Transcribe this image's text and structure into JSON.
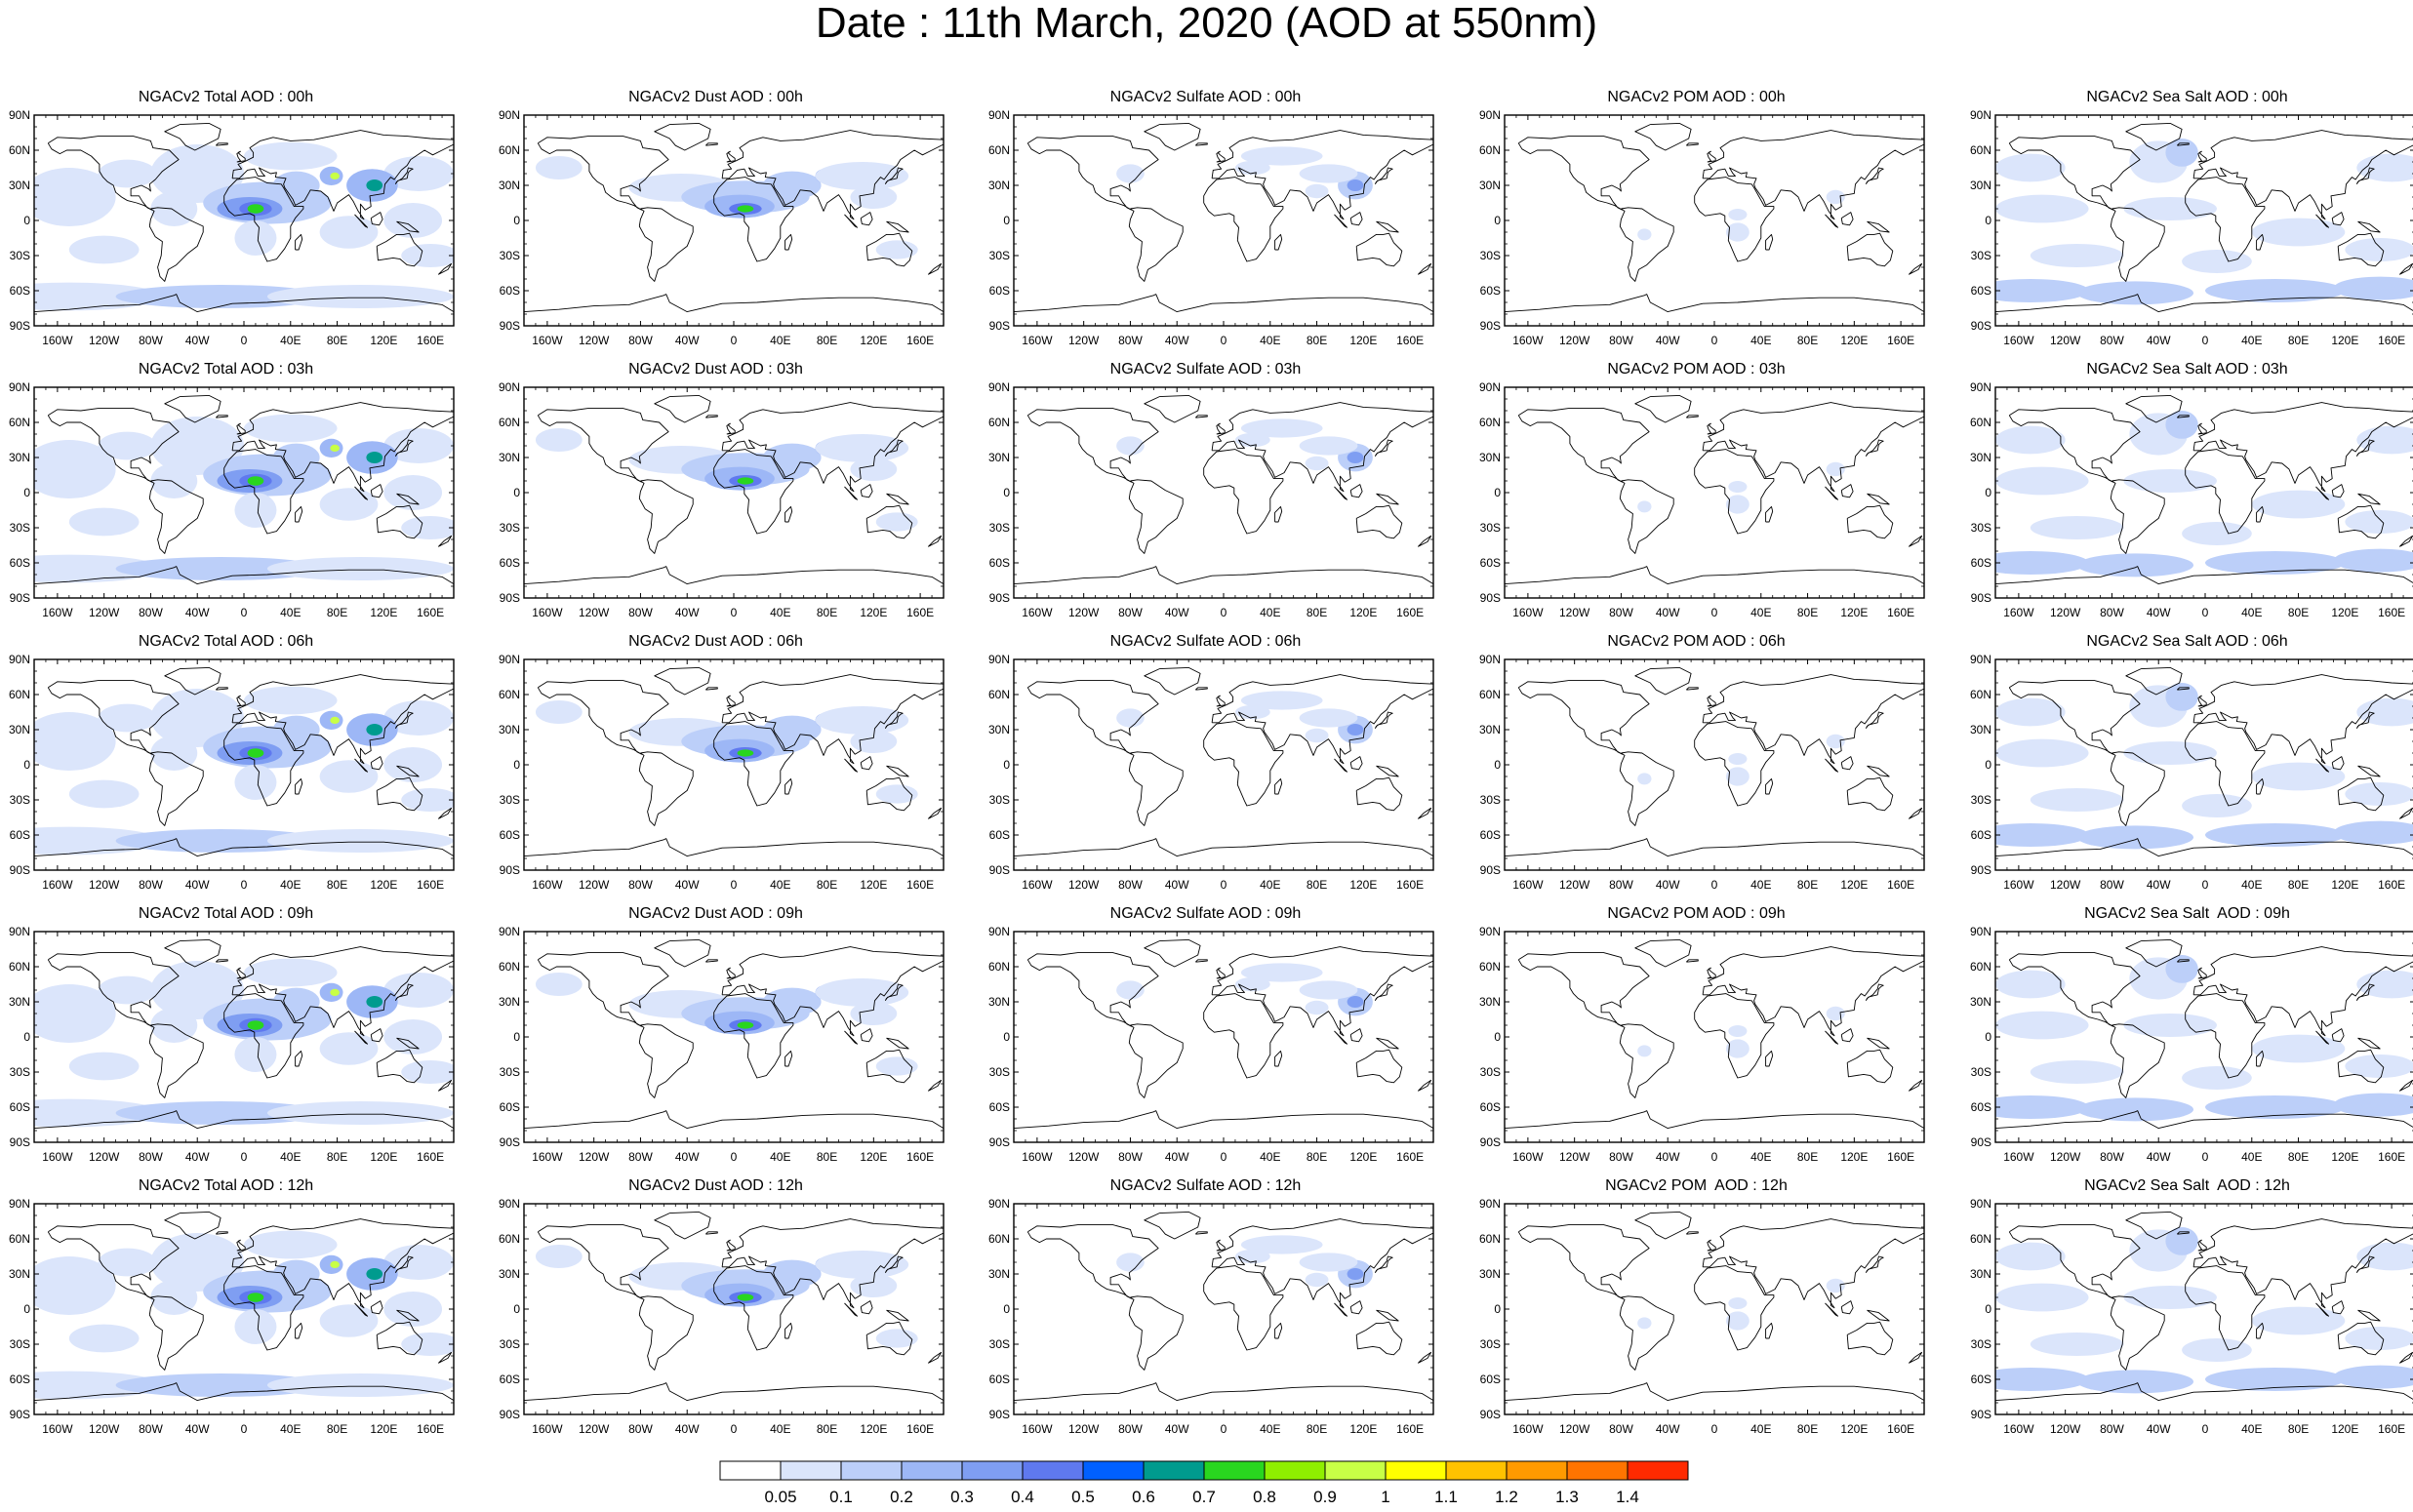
{
  "title": "Date : 11th March, 2020 (AOD at 550nm)",
  "species": [
    "Total",
    "Dust",
    "Sulfate",
    "POM",
    "Sea Salt"
  ],
  "panel_titles": [
    [
      "NGACv2 Total AOD : 00h",
      "NGACv2 Dust AOD : 00h",
      "NGACv2 Sulfate AOD : 00h",
      "NGACv2 POM AOD : 00h",
      "NGACv2 Sea Salt AOD : 00h"
    ],
    [
      "NGACv2 Total AOD : 03h",
      "NGACv2 Dust AOD : 03h",
      "NGACv2 Sulfate AOD : 03h",
      "NGACv2 POM AOD : 03h",
      "NGACv2 Sea Salt AOD : 03h"
    ],
    [
      "NGACv2 Total AOD : 06h",
      "NGACv2 Dust AOD : 06h",
      "NGACv2 Sulfate AOD : 06h",
      "NGACv2 POM AOD : 06h",
      "NGACv2 Sea Salt AOD : 06h"
    ],
    [
      "NGACv2 Total AOD : 09h",
      "NGACv2 Dust AOD : 09h",
      "NGACv2 Sulfate AOD : 09h",
      "NGACv2 POM AOD : 09h",
      "NGACv2 Sea Salt  AOD : 09h"
    ],
    [
      "NGACv2 Total AOD : 12h",
      "NGACv2 Dust AOD : 12h",
      "NGACv2 Sulfate AOD : 12h",
      "NGACv2 POM  AOD : 12h",
      "NGACv2 Sea Salt  AOD : 12h"
    ]
  ],
  "lat_labels": [
    "90N",
    "60N",
    "30N",
    "0",
    "30S",
    "60S",
    "90S"
  ],
  "lon_labels": [
    "160W",
    "120W",
    "80W",
    "40W",
    "0",
    "40E",
    "80E",
    "120E",
    "160E"
  ],
  "colorbar": {
    "labels": [
      "0.05",
      "0.1",
      "0.2",
      "0.3",
      "0.4",
      "0.5",
      "0.6",
      "0.7",
      "0.8",
      "0.9",
      "1",
      "1.1",
      "1.2",
      "1.3",
      "1.4"
    ],
    "colors": [
      "#ffffff",
      "#dbe5fb",
      "#bccff9",
      "#9db7f6",
      "#7f9ef2",
      "#5f79ef",
      "#0060ff",
      "#009b8e",
      "#29d61f",
      "#8fef00",
      "#c8ff46",
      "#ffff00",
      "#ffc200",
      "#ff9a00",
      "#ff7400",
      "#ff2a00"
    ]
  }
}
